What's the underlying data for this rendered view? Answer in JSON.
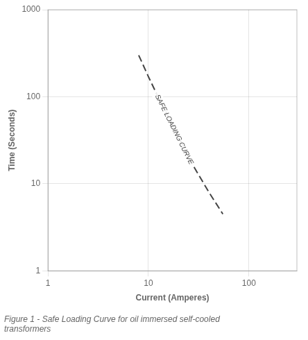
{
  "chart_data": {
    "type": "line",
    "xlabel": "Current (Amperes)",
    "ylabel": "Time (Seconds)",
    "caption": "Figure 1 - Safe Loading Curve for oil immersed self-cooled\ntransformers",
    "log": true,
    "grid": true,
    "xlim": [
      1,
      300
    ],
    "ylim": [
      1,
      1000
    ],
    "xticks": [
      1,
      10,
      100
    ],
    "yticks": [
      1,
      10,
      100,
      1000
    ],
    "x": [
      8.0,
      10.0,
      13.0,
      18.0,
      25.0,
      40.0,
      55.0
    ],
    "series": [
      {
        "color": "#444444",
        "line_style": "dashed",
        "values": [
          300,
          170,
          90,
          45,
          20,
          8.0,
          4.5
        ]
      }
    ],
    "annotations": [
      {
        "text": "SAFE LOADING CURVE",
        "x": 18,
        "y": 42
      }
    ]
  }
}
